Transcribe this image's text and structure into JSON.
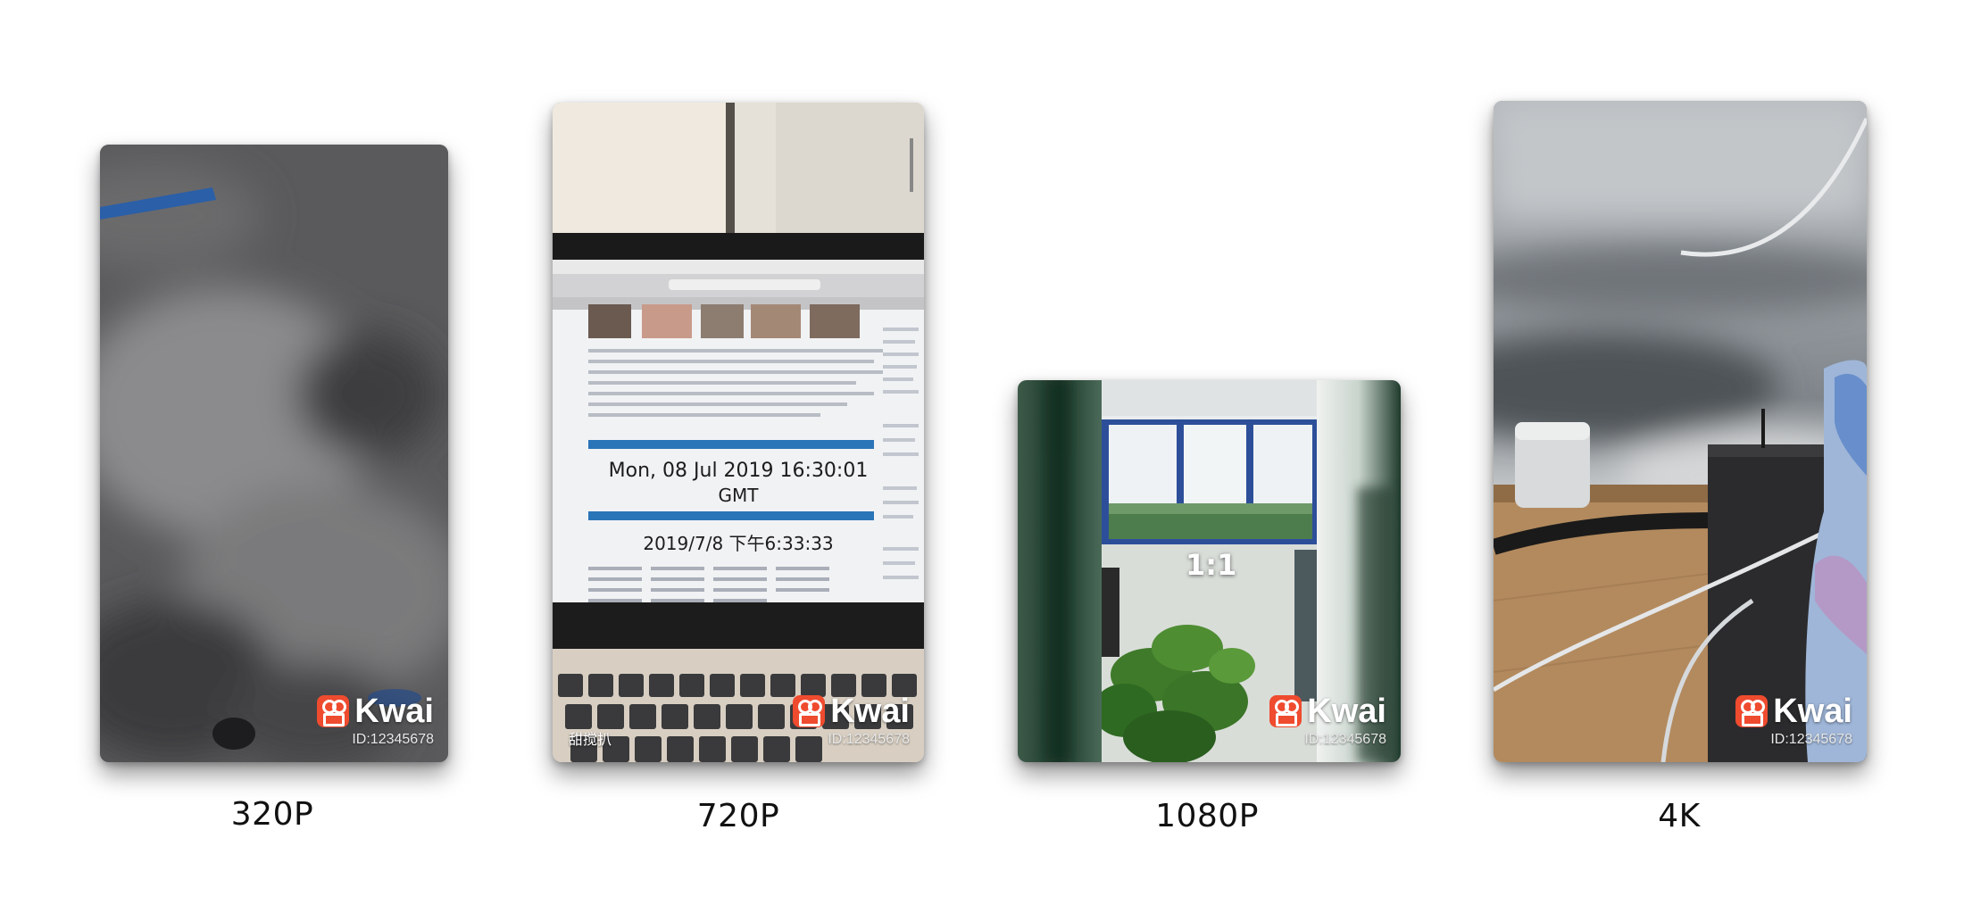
{
  "watermark": {
    "brand": "Kwai",
    "id": "ID:12345678"
  },
  "cards": [
    {
      "caption": "320P"
    },
    {
      "caption": "720P",
      "screen_date_gmt": "Mon, 08 Jul 2019 16:30:01",
      "screen_gmt": "GMT",
      "screen_date_local": "2019/7/8 下午6:33:33",
      "handle": "甜搅扒"
    },
    {
      "caption": "1080P",
      "ratio": "1:1"
    },
    {
      "caption": "4K"
    }
  ]
}
